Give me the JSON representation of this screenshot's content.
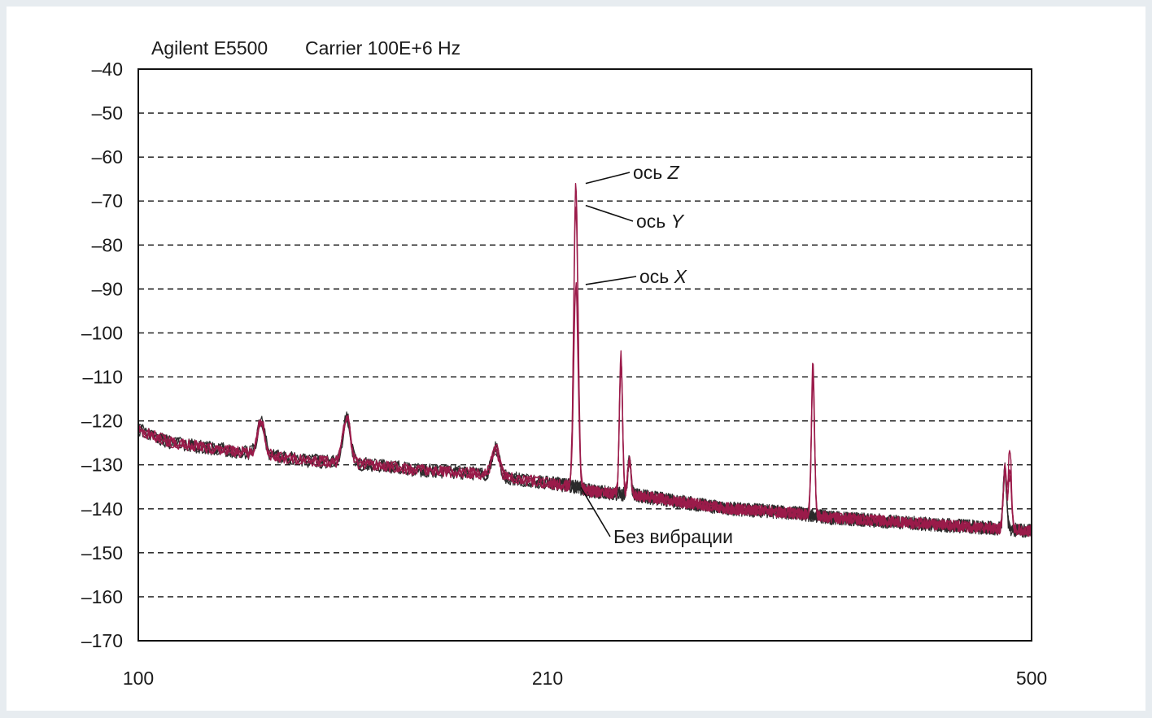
{
  "header": {
    "instrument": "Agilent E5500",
    "carrier": "Carrier 100E+6 Hz"
  },
  "chart_data": {
    "type": "line",
    "title": "",
    "xlabel": "",
    "ylabel": "",
    "xlim": [
      100,
      500
    ],
    "ylim": [
      -170,
      -40
    ],
    "y_ticks": [
      -40,
      -50,
      -60,
      -70,
      -80,
      -90,
      -100,
      -110,
      -120,
      -130,
      -140,
      -150,
      -160,
      -170
    ],
    "y_tick_labels": [
      "–40",
      "–50",
      "–60",
      "–70",
      "–80",
      "–90",
      "–100",
      "–110",
      "–120",
      "–130",
      "–140",
      "–150",
      "–160",
      "–170"
    ],
    "x_tick_labels": [
      "100",
      "210",
      "500"
    ],
    "x_tick_positions": [
      100,
      210,
      500
    ],
    "grid": "dashed horizontal",
    "colors": {
      "vibration": "#9b1b4a",
      "baseline": "#2a2a2a",
      "grid": "#111111",
      "frame": "#111111"
    },
    "baseline_trend": [
      [
        100,
        -122
      ],
      [
        109,
        -125
      ],
      [
        118,
        -126
      ],
      [
        127,
        -127
      ],
      [
        136,
        -128
      ],
      [
        145,
        -129
      ],
      [
        155,
        -129.5
      ],
      [
        164,
        -130
      ],
      [
        173,
        -131
      ],
      [
        182,
        -131.5
      ],
      [
        191,
        -132
      ],
      [
        200,
        -133
      ],
      [
        209,
        -134
      ],
      [
        218,
        -134.5
      ],
      [
        227,
        -135
      ],
      [
        236,
        -136
      ],
      [
        250,
        -136.5
      ],
      [
        264,
        -137
      ],
      [
        273,
        -137.5
      ],
      [
        282,
        -138
      ],
      [
        291,
        -138.5
      ],
      [
        300,
        -139
      ],
      [
        320,
        -140
      ],
      [
        340,
        -140.5
      ],
      [
        360,
        -141
      ],
      [
        380,
        -142
      ],
      [
        400,
        -142.5
      ],
      [
        420,
        -143
      ],
      [
        440,
        -143.5
      ],
      [
        460,
        -144
      ],
      [
        480,
        -144.5
      ],
      [
        500,
        -145
      ]
    ],
    "baseline_peaks": [
      {
        "x": 156,
        "y": -119
      },
      {
        "x": 133,
        "y": -120
      },
      {
        "x": 196,
        "y": -126
      },
      {
        "x": 259,
        "y": -129
      },
      {
        "x": 484,
        "y": -131
      }
    ],
    "series": [
      {
        "name": "ось Z",
        "peaks": [
          {
            "x": 227,
            "y": -66
          },
          {
            "x": 254,
            "y": -104
          },
          {
            "x": 369,
            "y": -106
          },
          {
            "x": 487,
            "y": -126
          }
        ]
      },
      {
        "name": "ось Y",
        "peaks": [
          {
            "x": 227,
            "y": -71
          },
          {
            "x": 254,
            "y": -106
          },
          {
            "x": 369,
            "y": -108
          },
          {
            "x": 487,
            "y": -130
          }
        ]
      },
      {
        "name": "ось X",
        "peaks": [
          {
            "x": 227,
            "y": -89
          },
          {
            "x": 254,
            "y": -107
          },
          {
            "x": 369,
            "y": -110
          },
          {
            "x": 487,
            "y": -133
          }
        ]
      },
      {
        "name": "Без вибрации",
        "peaks": []
      }
    ],
    "annotations": [
      {
        "text": "ось ",
        "italic": "Z",
        "x": 227,
        "y": -66
      },
      {
        "text": "ось ",
        "italic": "Y",
        "x": 227,
        "y": -71
      },
      {
        "text": "ось ",
        "italic": "X",
        "x": 227,
        "y": -89
      },
      {
        "text": "Без вибрации",
        "italic": "",
        "x": 227,
        "y": -134
      }
    ]
  }
}
